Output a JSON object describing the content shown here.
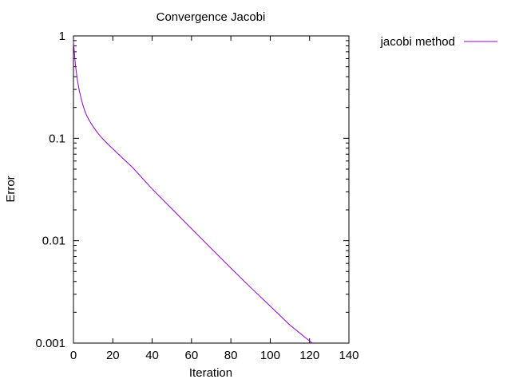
{
  "chart_data": {
    "type": "line",
    "title": "Convergence Jacobi",
    "xlabel": "Iteration",
    "ylabel": "Error",
    "xlim": [
      0,
      140
    ],
    "ylim": [
      0.001,
      1
    ],
    "yscale": "log",
    "grid": false,
    "legend_position": "outside-top-right",
    "x_ticks": [
      "0",
      "20",
      "40",
      "60",
      "80",
      "100",
      "120",
      "140"
    ],
    "y_ticks": [
      "0.001",
      "0.01",
      "0.1",
      "1"
    ],
    "series": [
      {
        "name": "jacobi method",
        "color": "#9400d3",
        "x": [
          0,
          1,
          2,
          3,
          4,
          5,
          6,
          7,
          8,
          10,
          12,
          14,
          16,
          18,
          20,
          25,
          30,
          40,
          50,
          60,
          70,
          80,
          90,
          100,
          110,
          120,
          123
        ],
        "y": [
          0.88,
          0.52,
          0.37,
          0.29,
          0.24,
          0.205,
          0.18,
          0.163,
          0.15,
          0.13,
          0.115,
          0.103,
          0.094,
          0.086,
          0.079,
          0.064,
          0.052,
          0.032,
          0.0205,
          0.0131,
          0.0084,
          0.0054,
          0.0035,
          0.0023,
          0.0015,
          0.00105,
          0.00095
        ]
      }
    ]
  }
}
